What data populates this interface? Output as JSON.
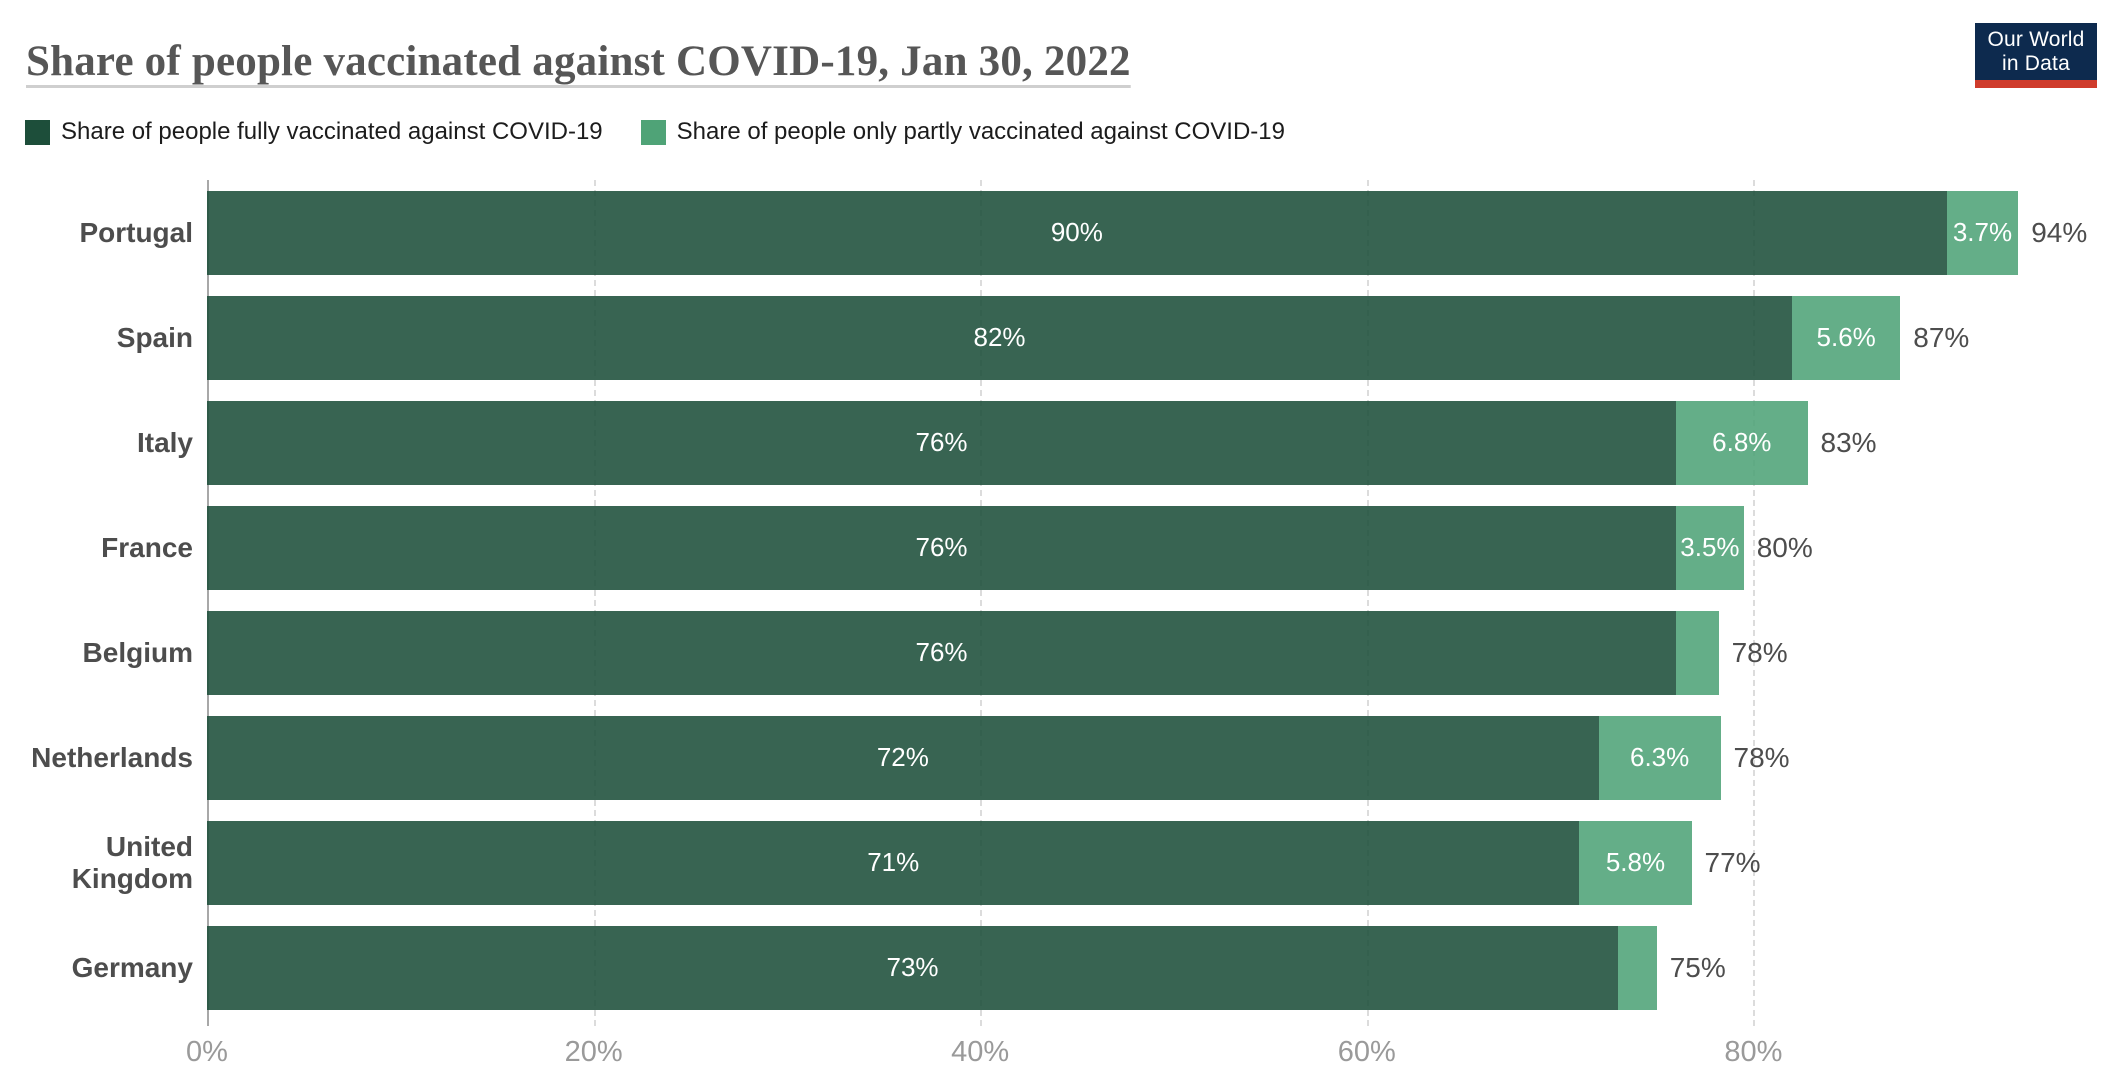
{
  "title": "Share of people vaccinated against COVID-19, Jan 30, 2022",
  "logo": {
    "line1": "Our World",
    "line2": "in Data",
    "navy": "#0d2a4e",
    "red": "#cf3c2c"
  },
  "legend": [
    {
      "label": "Share of people fully vaccinated against COVID-19",
      "color": "#1d4e3a"
    },
    {
      "label": "Share of people only partly vaccinated against COVID-19",
      "color": "#4fa377"
    }
  ],
  "chart_data": {
    "type": "bar",
    "orientation": "horizontal",
    "stacked": true,
    "grid": "dashed-vertical",
    "categories": [
      "Portugal",
      "Spain",
      "Italy",
      "France",
      "Belgium",
      "Netherlands",
      "United Kingdom",
      "Germany"
    ],
    "series": [
      {
        "name": "Share of people fully vaccinated against COVID-19",
        "color": "#1d4e3a",
        "values": [
          90,
          82,
          76,
          76,
          76,
          72,
          71,
          73
        ],
        "labels": [
          "90%",
          "82%",
          "76%",
          "76%",
          "76%",
          "72%",
          "71%",
          "73%"
        ]
      },
      {
        "name": "Share of people only partly vaccinated against COVID-19",
        "color": "#4fa377",
        "values": [
          3.7,
          5.6,
          6.8,
          3.5,
          2.2,
          6.3,
          5.8,
          2.0
        ],
        "labels": [
          "3.7%",
          "5.6%",
          "6.8%",
          "3.5%",
          "",
          "6.3%",
          "5.8%",
          ""
        ]
      }
    ],
    "totals": [
      "94%",
      "87%",
      "83%",
      "80%",
      "78%",
      "78%",
      "77%",
      "75%"
    ],
    "x_ticks": [
      "0%",
      "20%",
      "40%",
      "60%",
      "80%"
    ],
    "x_tick_values": [
      0,
      20,
      40,
      60,
      80
    ],
    "xlim": [
      0,
      100
    ],
    "legend_position": "top-left"
  }
}
